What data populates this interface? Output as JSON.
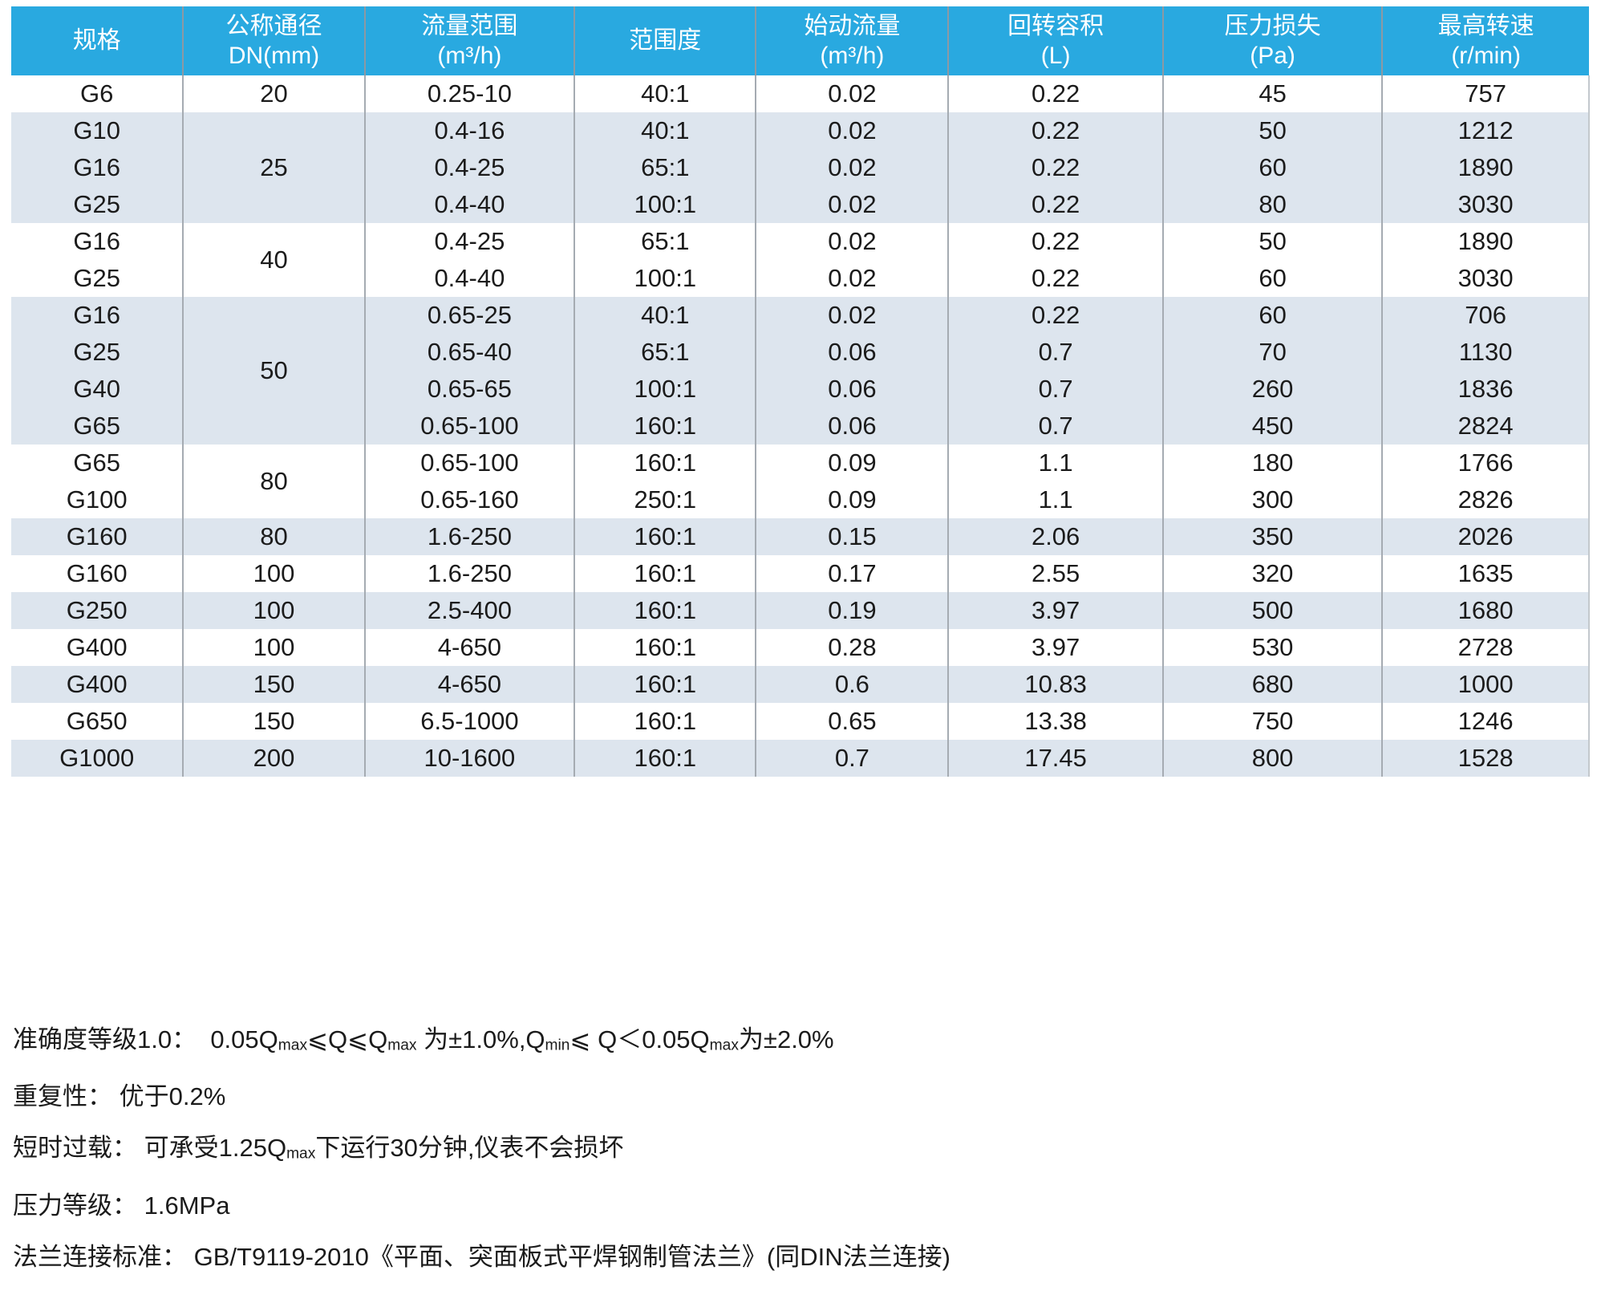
{
  "colors": {
    "header_bg": "#29a9e0",
    "header_text": "#ffffff",
    "stripe_bg": "#dde5ee",
    "grid_line": "#a5abb2",
    "body_text": "#1b1b1b"
  },
  "table": {
    "headers": [
      {
        "line1": "规格",
        "line2": ""
      },
      {
        "line1": "公称通径",
        "line2": "DN(mm)"
      },
      {
        "line1": "流量范围",
        "line2": "(m³/h)"
      },
      {
        "line1": "范围度",
        "line2": ""
      },
      {
        "line1": "始动流量",
        "line2": "(m³/h)"
      },
      {
        "line1": "回转容积",
        "line2": "(L)"
      },
      {
        "line1": "压力损失",
        "line2": "(Pa)"
      },
      {
        "line1": "最高转速",
        "line2": "(r/min)"
      }
    ],
    "groups": [
      {
        "dn": "20",
        "rows": [
          {
            "spec": "G6",
            "flow_range": "0.25-10",
            "rangeability": "40:1",
            "start_flow": "0.02",
            "cyclic_volume": "0.22",
            "pressure_loss": "45",
            "max_speed": "757"
          }
        ]
      },
      {
        "dn": "25",
        "rows": [
          {
            "spec": "G10",
            "flow_range": "0.4-16",
            "rangeability": "40:1",
            "start_flow": "0.02",
            "cyclic_volume": "0.22",
            "pressure_loss": "50",
            "max_speed": "1212"
          },
          {
            "spec": "G16",
            "flow_range": "0.4-25",
            "rangeability": "65:1",
            "start_flow": "0.02",
            "cyclic_volume": "0.22",
            "pressure_loss": "60",
            "max_speed": "1890"
          },
          {
            "spec": "G25",
            "flow_range": "0.4-40",
            "rangeability": "100:1",
            "start_flow": "0.02",
            "cyclic_volume": "0.22",
            "pressure_loss": "80",
            "max_speed": "3030"
          }
        ]
      },
      {
        "dn": "40",
        "rows": [
          {
            "spec": "G16",
            "flow_range": "0.4-25",
            "rangeability": "65:1",
            "start_flow": "0.02",
            "cyclic_volume": "0.22",
            "pressure_loss": "50",
            "max_speed": "1890"
          },
          {
            "spec": "G25",
            "flow_range": "0.4-40",
            "rangeability": "100:1",
            "start_flow": "0.02",
            "cyclic_volume": "0.22",
            "pressure_loss": "60",
            "max_speed": "3030"
          }
        ]
      },
      {
        "dn": "50",
        "rows": [
          {
            "spec": "G16",
            "flow_range": "0.65-25",
            "rangeability": "40:1",
            "start_flow": "0.02",
            "cyclic_volume": "0.22",
            "pressure_loss": "60",
            "max_speed": "706"
          },
          {
            "spec": "G25",
            "flow_range": "0.65-40",
            "rangeability": "65:1",
            "start_flow": "0.06",
            "cyclic_volume": "0.7",
            "pressure_loss": "70",
            "max_speed": "1130"
          },
          {
            "spec": "G40",
            "flow_range": "0.65-65",
            "rangeability": "100:1",
            "start_flow": "0.06",
            "cyclic_volume": "0.7",
            "pressure_loss": "260",
            "max_speed": "1836"
          },
          {
            "spec": "G65",
            "flow_range": "0.65-100",
            "rangeability": "160:1",
            "start_flow": "0.06",
            "cyclic_volume": "0.7",
            "pressure_loss": "450",
            "max_speed": "2824"
          }
        ]
      },
      {
        "dn": "80",
        "rows": [
          {
            "spec": "G65",
            "flow_range": "0.65-100",
            "rangeability": "160:1",
            "start_flow": "0.09",
            "cyclic_volume": "1.1",
            "pressure_loss": "180",
            "max_speed": "1766"
          },
          {
            "spec": "G100",
            "flow_range": "0.65-160",
            "rangeability": "250:1",
            "start_flow": "0.09",
            "cyclic_volume": "1.1",
            "pressure_loss": "300",
            "max_speed": "2826"
          }
        ]
      },
      {
        "dn": "80",
        "rows": [
          {
            "spec": "G160",
            "flow_range": "1.6-250",
            "rangeability": "160:1",
            "start_flow": "0.15",
            "cyclic_volume": "2.06",
            "pressure_loss": "350",
            "max_speed": "2026"
          }
        ]
      },
      {
        "dn": "100",
        "rows": [
          {
            "spec": "G160",
            "flow_range": "1.6-250",
            "rangeability": "160:1",
            "start_flow": "0.17",
            "cyclic_volume": "2.55",
            "pressure_loss": "320",
            "max_speed": "1635"
          }
        ]
      },
      {
        "dn": "100",
        "rows": [
          {
            "spec": "G250",
            "flow_range": "2.5-400",
            "rangeability": "160:1",
            "start_flow": "0.19",
            "cyclic_volume": "3.97",
            "pressure_loss": "500",
            "max_speed": "1680"
          }
        ]
      },
      {
        "dn": "100",
        "rows": [
          {
            "spec": "G400",
            "flow_range": "4-650",
            "rangeability": "160:1",
            "start_flow": "0.28",
            "cyclic_volume": "3.97",
            "pressure_loss": "530",
            "max_speed": "2728"
          }
        ]
      },
      {
        "dn": "150",
        "rows": [
          {
            "spec": "G400",
            "flow_range": "4-650",
            "rangeability": "160:1",
            "start_flow": "0.6",
            "cyclic_volume": "10.83",
            "pressure_loss": "680",
            "max_speed": "1000"
          }
        ]
      },
      {
        "dn": "150",
        "rows": [
          {
            "spec": "G650",
            "flow_range": "6.5-1000",
            "rangeability": "160:1",
            "start_flow": "0.65",
            "cyclic_volume": "13.38",
            "pressure_loss": "750",
            "max_speed": "1246"
          }
        ]
      },
      {
        "dn": "200",
        "rows": [
          {
            "spec": "G1000",
            "flow_range": "10-1600",
            "rangeability": "160:1",
            "start_flow": "0.7",
            "cyclic_volume": "17.45",
            "pressure_loss": "800",
            "max_speed": "1528"
          }
        ]
      }
    ]
  },
  "notes": [
    {
      "segments": [
        {
          "t": "准确度等级1.0：  0.05Q"
        },
        {
          "t": "max",
          "sub": true
        },
        {
          "t": "⩽Q⩽Q"
        },
        {
          "t": "max",
          "sub": true
        },
        {
          "t": " 为±1.0%,Q"
        },
        {
          "t": "min",
          "sub": true
        },
        {
          "t": "⩽ Q＜0.05Q"
        },
        {
          "t": "max",
          "sub": true
        },
        {
          "t": "为±2.0%"
        }
      ]
    },
    {
      "segments": [
        {
          "t": "重复性： 优于0.2%"
        }
      ]
    },
    {
      "segments": [
        {
          "t": "短时过载： 可承受1.25Q"
        },
        {
          "t": "max",
          "sub": true
        },
        {
          "t": "下运行30分钟,仪表不会损坏"
        }
      ]
    },
    {
      "segments": [
        {
          "t": "压力等级： 1.6MPa"
        }
      ]
    },
    {
      "segments": [
        {
          "t": "法兰连接标准： GB/T9119-2010《平面、突面板式平焊钢制管法兰》(同DIN法兰连接)"
        }
      ]
    }
  ]
}
